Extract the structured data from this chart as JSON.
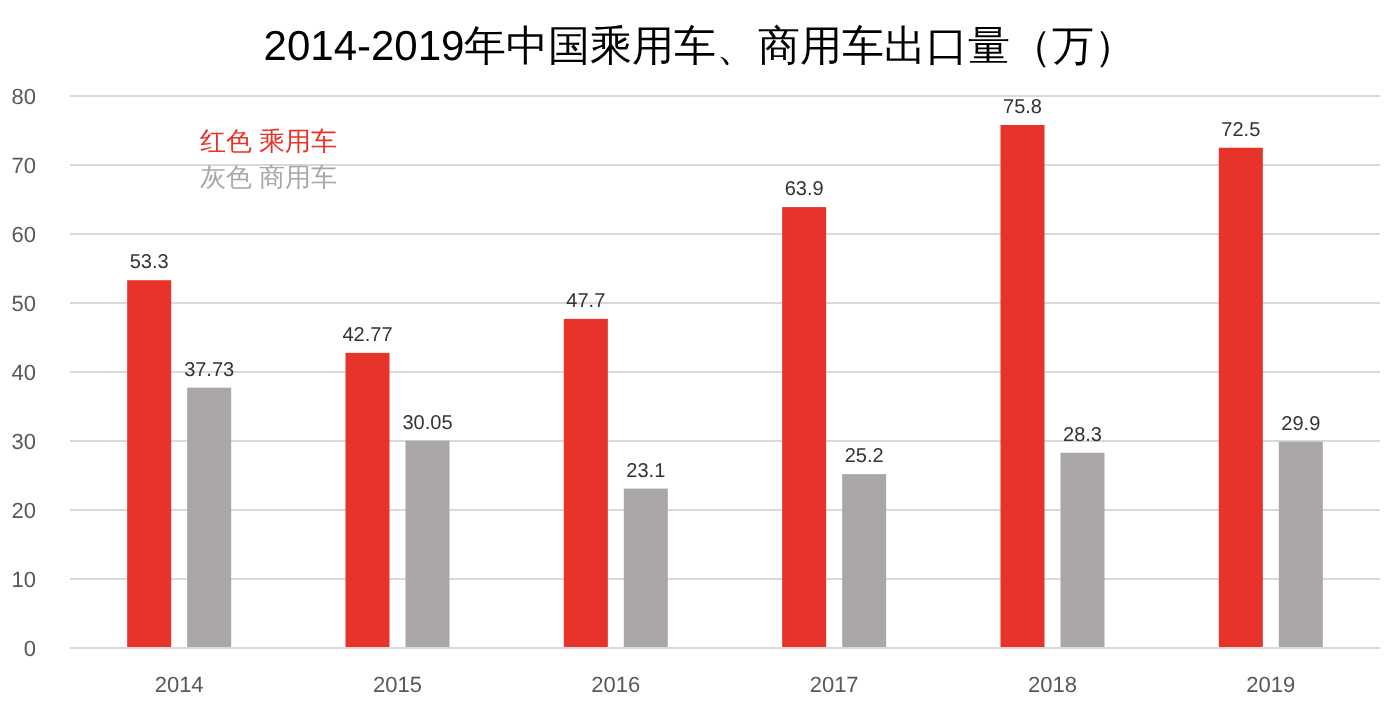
{
  "chart_data": {
    "type": "bar",
    "title": "2014-2019年中国乘用车、商用车出口量（万）",
    "categories": [
      "2014",
      "2015",
      "2016",
      "2017",
      "2018",
      "2019"
    ],
    "series": [
      {
        "name": "红色 乘用车",
        "color": "#e8332a",
        "values": [
          53.3,
          42.77,
          47.7,
          63.9,
          75.8,
          72.5
        ]
      },
      {
        "name": "灰色 商用车",
        "color": "#aca7a7",
        "values": [
          37.73,
          30.05,
          23.1,
          25.2,
          28.3,
          29.9
        ]
      }
    ],
    "ylim": [
      0,
      80
    ],
    "yticks": [
      0,
      10,
      20,
      30,
      40,
      50,
      60,
      70,
      80
    ],
    "grid": "y",
    "legend": "top left",
    "data_labels": true
  }
}
